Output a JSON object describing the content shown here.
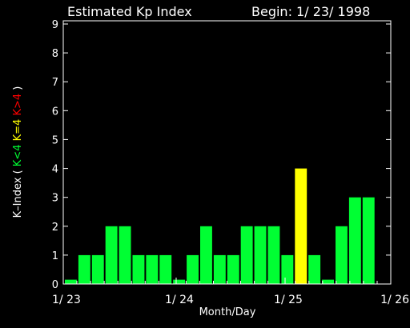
{
  "chart_data": {
    "type": "bar",
    "title": "Estimated Kp Index",
    "subtitle": "Begin: 1/ 23/ 1998",
    "xlabel": "Month/Day",
    "ylabel": {
      "prefix": "K–Index ( ",
      "low": "K<4",
      "mid": "K=4",
      "high": "K>4",
      "suffix": " )"
    },
    "ylim": [
      0,
      9
    ],
    "yticks": [
      "0",
      "1",
      "2",
      "3",
      "4",
      "5",
      "6",
      "7",
      "8",
      "9"
    ],
    "xticks": [
      "1/ 23",
      "1/ 24",
      "1/ 25",
      "1/ 26"
    ],
    "colors": {
      "low": "#00ff33",
      "mid": "#ffff00",
      "high": "#ff0000",
      "axes": "#ffffff",
      "background": "#000000"
    },
    "interval_hours": 3,
    "values": [
      0.15,
      1,
      1,
      2,
      2,
      1,
      1,
      1,
      0.15,
      1,
      2,
      1,
      1,
      2,
      2,
      2,
      1,
      4,
      1,
      0.15,
      2,
      3,
      3
    ]
  }
}
